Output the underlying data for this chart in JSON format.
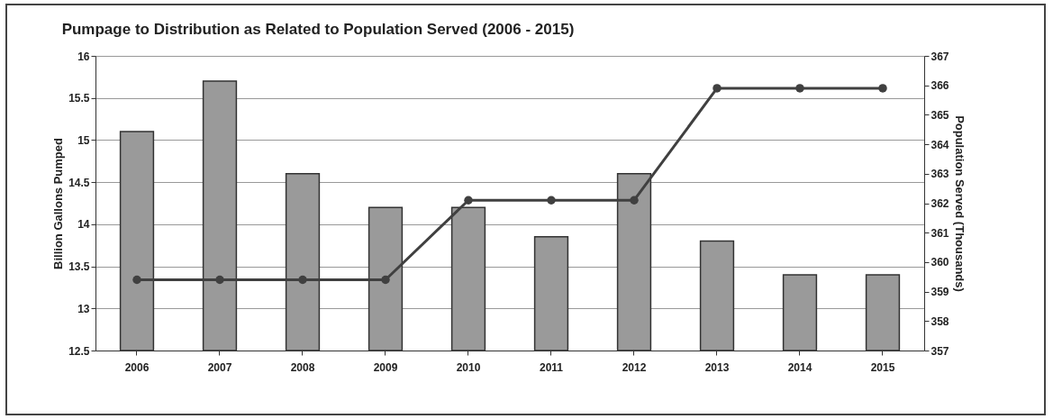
{
  "chart_data": {
    "type": "bar",
    "title": "Pumpage to Distribution as Related to Population Served (2006 - 2015)",
    "ylabel": "Billion Gallons Pumped",
    "y2label": "Population Served (Thousands)",
    "categories": [
      "2006",
      "2007",
      "2008",
      "2009",
      "2010",
      "2011",
      "2012",
      "2013",
      "2014",
      "2015"
    ],
    "series": [
      {
        "color": "#9a9a9a",
        "values": [
          15.1,
          15.7,
          14.6,
          14.2,
          14.2,
          13.85,
          14.6,
          13.8,
          13.4,
          13.4
        ]
      },
      {
        "type": "line",
        "axis": "y2",
        "color": "#404040",
        "marker": "circle",
        "values": [
          359.4,
          359.4,
          359.4,
          359.4,
          362.1,
          362.1,
          362.1,
          365.9,
          365.9,
          365.9
        ]
      }
    ],
    "ylim": [
      12.5,
      16
    ],
    "yticks": [
      {
        "value": 12.5,
        "label": "12.5"
      },
      {
        "value": 13,
        "label": "13"
      },
      {
        "value": 13.5,
        "label": "13.5"
      },
      {
        "value": 14,
        "label": "14"
      },
      {
        "value": 14.5,
        "label": "14.5"
      },
      {
        "value": 15,
        "label": "15"
      },
      {
        "value": 15.5,
        "label": "15.5"
      },
      {
        "value": 16,
        "label": "16"
      }
    ],
    "y2lim": [
      357,
      367
    ],
    "y2ticks": [
      357,
      358,
      359,
      360,
      361,
      362,
      363,
      364,
      365,
      366,
      367
    ],
    "grid": "y"
  }
}
